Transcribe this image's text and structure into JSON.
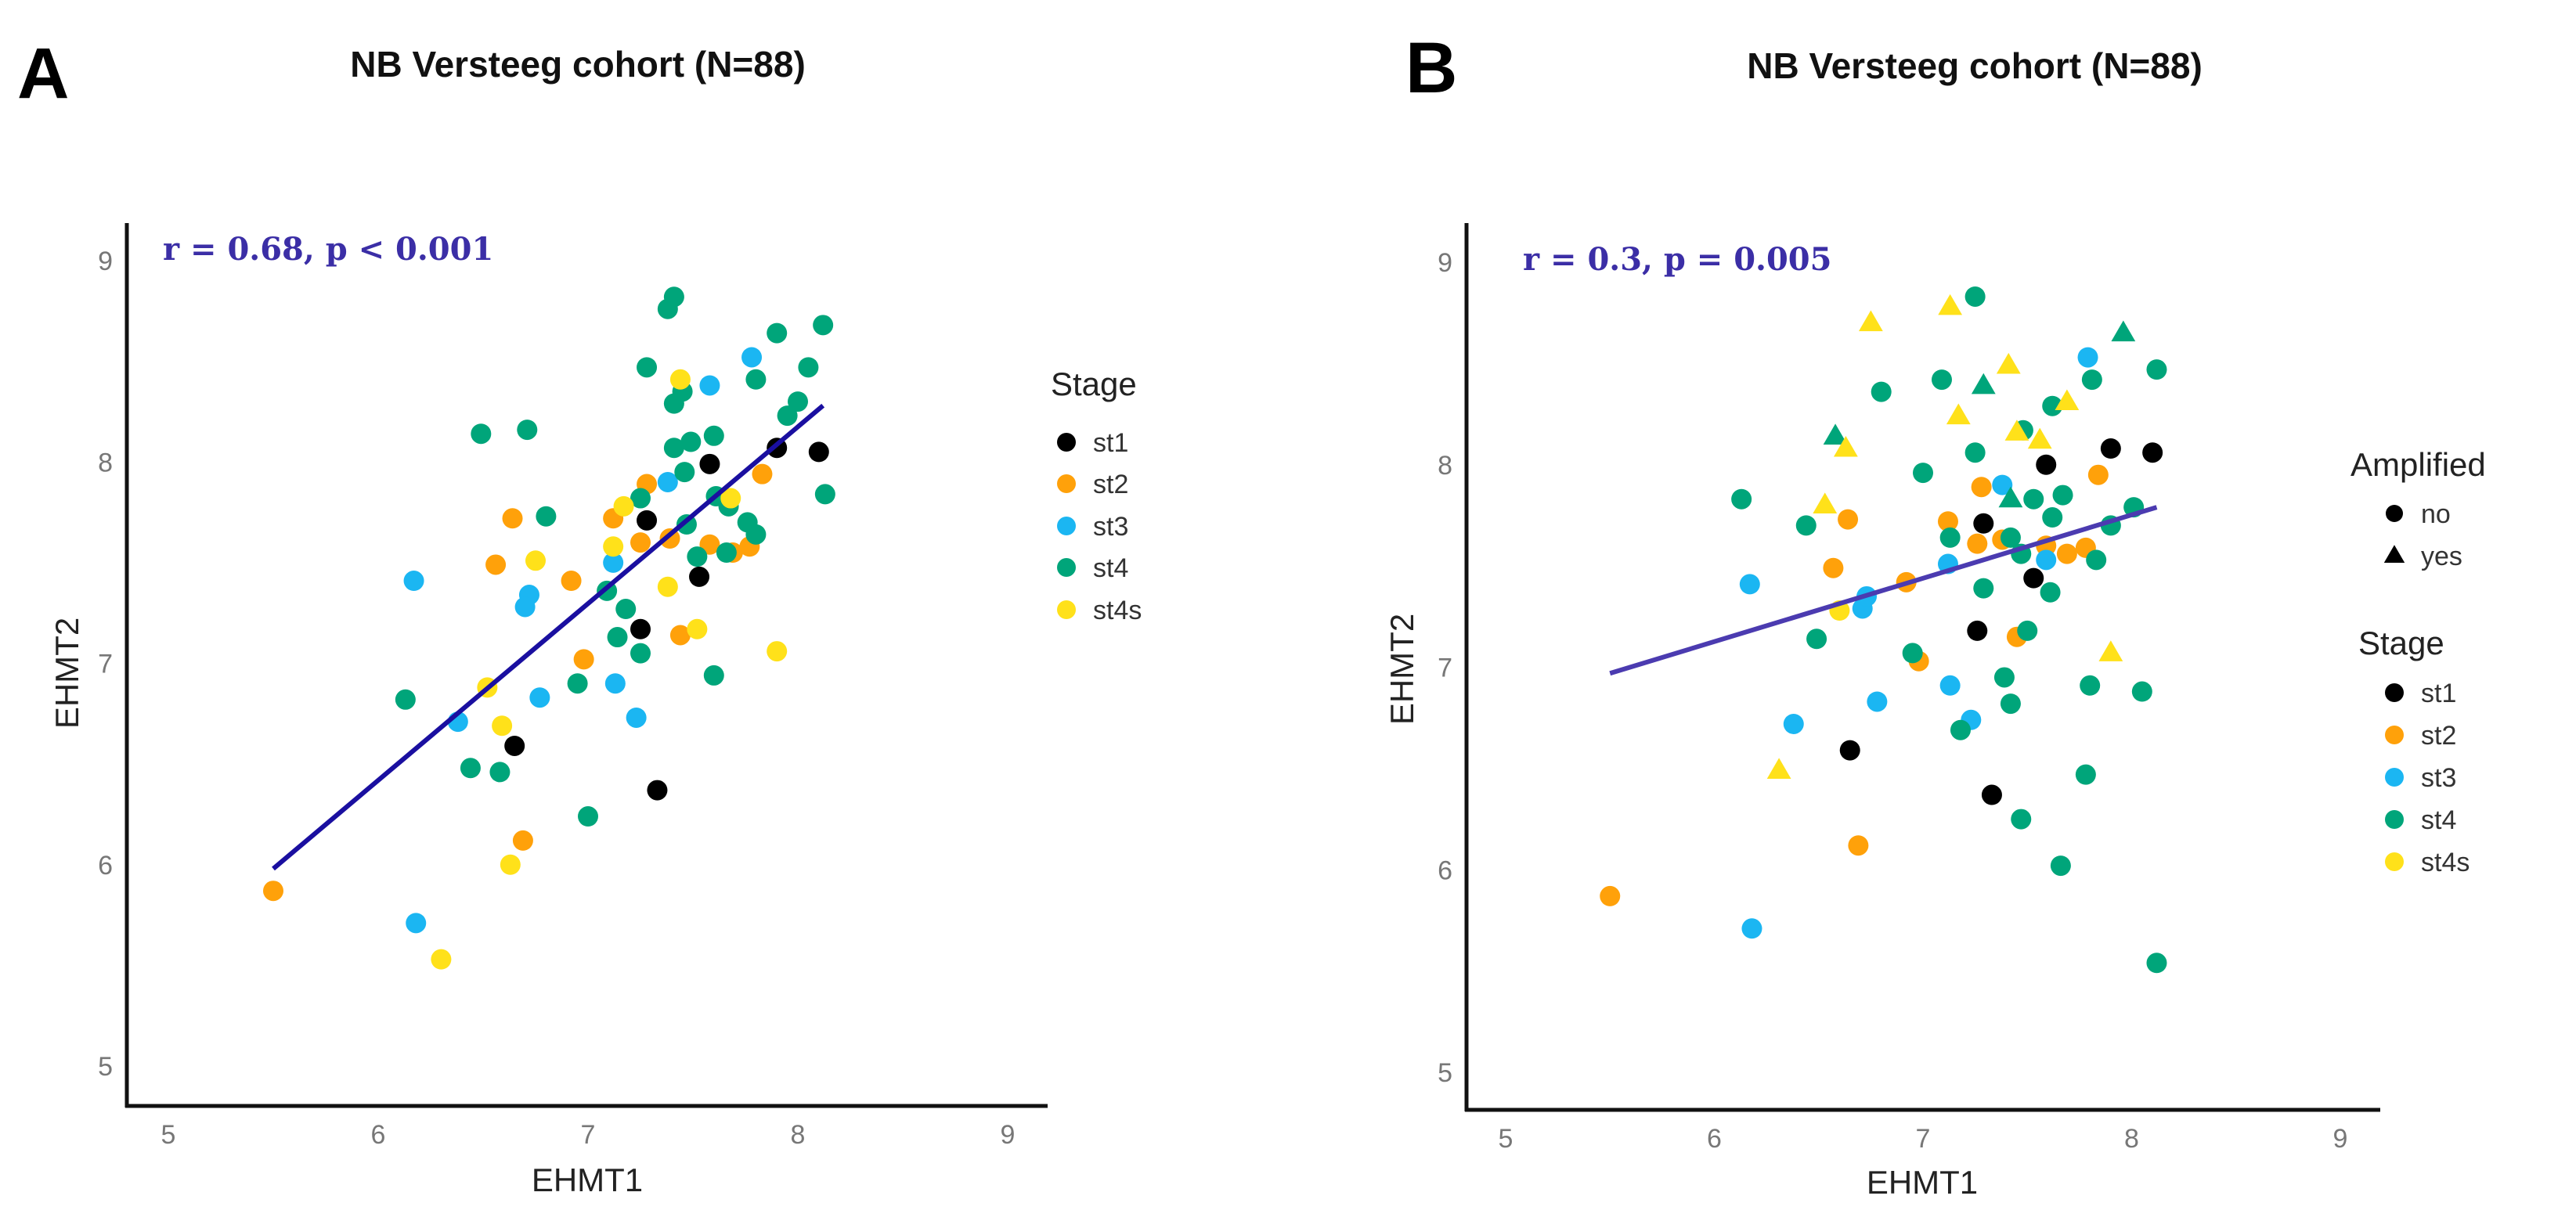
{
  "colors": {
    "st1": "#000000",
    "st2": "#FFA10A",
    "st3": "#1BB6F2",
    "st4": "#00A57A",
    "st4s": "#FFE11A",
    "line_A": "#1A0FA0",
    "line_B": "#4B3BB0"
  },
  "chart_data": [
    {
      "type": "scatter",
      "panel_label": "A",
      "title": "NB Versteeg cohort  (N=88)",
      "xlabel": "EHMT1",
      "ylabel": "EHMT2",
      "xlim": [
        4.8,
        9.2
      ],
      "ylim": [
        4.8,
        9.2
      ],
      "xticks": [
        "5",
        "6",
        "7",
        "8",
        "9"
      ],
      "yticks": [
        "5",
        "6",
        "7",
        "8",
        "9"
      ],
      "annotation": "r = 0.68, p < 0.001",
      "grid": false,
      "legend": {
        "title": "Stage",
        "entries": [
          "st1",
          "st2",
          "st3",
          "st4",
          "st4s"
        ],
        "placement": "right"
      },
      "fit_line": [
        [
          5.5,
          5.98
        ],
        [
          8.12,
          8.28
        ]
      ],
      "points": [
        [
          7.9,
          8.07,
          "st1"
        ],
        [
          8.1,
          8.05,
          "st1"
        ],
        [
          7.58,
          7.99,
          "st1"
        ],
        [
          7.28,
          7.71,
          "st1"
        ],
        [
          7.53,
          7.43,
          "st1"
        ],
        [
          7.25,
          7.17,
          "st1"
        ],
        [
          6.65,
          6.59,
          "st1"
        ],
        [
          7.33,
          6.37,
          "st1"
        ],
        [
          6.64,
          7.72,
          "st2"
        ],
        [
          6.56,
          7.49,
          "st2"
        ],
        [
          6.92,
          7.41,
          "st2"
        ],
        [
          7.12,
          7.72,
          "st2"
        ],
        [
          7.28,
          7.89,
          "st2"
        ],
        [
          7.25,
          7.6,
          "st2"
        ],
        [
          7.39,
          7.62,
          "st2"
        ],
        [
          7.58,
          7.59,
          "st2"
        ],
        [
          7.69,
          7.55,
          "st2"
        ],
        [
          7.77,
          7.58,
          "st2"
        ],
        [
          7.83,
          7.94,
          "st2"
        ],
        [
          6.98,
          7.02,
          "st2"
        ],
        [
          7.44,
          7.14,
          "st2"
        ],
        [
          6.69,
          6.12,
          "st2"
        ],
        [
          5.5,
          5.87,
          "st2"
        ],
        [
          6.17,
          7.41,
          "st3"
        ],
        [
          6.72,
          7.34,
          "st3"
        ],
        [
          6.7,
          7.28,
          "st3"
        ],
        [
          7.12,
          7.5,
          "st3"
        ],
        [
          7.38,
          7.9,
          "st3"
        ],
        [
          7.58,
          8.38,
          "st3"
        ],
        [
          7.78,
          8.52,
          "st3"
        ],
        [
          6.38,
          6.71,
          "st3"
        ],
        [
          6.77,
          6.83,
          "st3"
        ],
        [
          7.13,
          6.9,
          "st3"
        ],
        [
          7.23,
          6.73,
          "st3"
        ],
        [
          6.18,
          5.71,
          "st3"
        ],
        [
          7.41,
          8.82,
          "st4"
        ],
        [
          7.38,
          8.76,
          "st4"
        ],
        [
          7.28,
          8.47,
          "st4"
        ],
        [
          7.9,
          8.64,
          "st4"
        ],
        [
          8.12,
          8.68,
          "st4"
        ],
        [
          8.05,
          8.47,
          "st4"
        ],
        [
          7.8,
          8.41,
          "st4"
        ],
        [
          7.41,
          8.29,
          "st4"
        ],
        [
          7.45,
          8.35,
          "st4"
        ],
        [
          8.0,
          8.3,
          "st4"
        ],
        [
          7.95,
          8.23,
          "st4"
        ],
        [
          6.49,
          8.14,
          "st4"
        ],
        [
          6.71,
          8.16,
          "st4"
        ],
        [
          7.41,
          8.07,
          "st4"
        ],
        [
          7.49,
          8.1,
          "st4"
        ],
        [
          7.6,
          8.13,
          "st4"
        ],
        [
          7.46,
          7.95,
          "st4"
        ],
        [
          8.13,
          7.84,
          "st4"
        ],
        [
          7.25,
          7.82,
          "st4"
        ],
        [
          7.61,
          7.83,
          "st4"
        ],
        [
          7.67,
          7.78,
          "st4"
        ],
        [
          6.8,
          7.73,
          "st4"
        ],
        [
          7.47,
          7.69,
          "st4"
        ],
        [
          7.76,
          7.7,
          "st4"
        ],
        [
          7.8,
          7.64,
          "st4"
        ],
        [
          7.52,
          7.53,
          "st4"
        ],
        [
          7.66,
          7.55,
          "st4"
        ],
        [
          7.09,
          7.36,
          "st4"
        ],
        [
          7.18,
          7.27,
          "st4"
        ],
        [
          7.14,
          7.13,
          "st4"
        ],
        [
          7.25,
          7.05,
          "st4"
        ],
        [
          7.6,
          6.94,
          "st4"
        ],
        [
          6.95,
          6.9,
          "st4"
        ],
        [
          6.13,
          6.82,
          "st4"
        ],
        [
          6.44,
          6.48,
          "st4"
        ],
        [
          6.58,
          6.46,
          "st4"
        ],
        [
          7.0,
          6.24,
          "st4"
        ],
        [
          7.44,
          8.41,
          "st4s"
        ],
        [
          7.17,
          7.78,
          "st4s"
        ],
        [
          7.68,
          7.82,
          "st4s"
        ],
        [
          7.12,
          7.58,
          "st4s"
        ],
        [
          6.75,
          7.51,
          "st4s"
        ],
        [
          7.38,
          7.38,
          "st4s"
        ],
        [
          7.52,
          7.17,
          "st4s"
        ],
        [
          7.9,
          7.06,
          "st4s"
        ],
        [
          6.52,
          6.88,
          "st4s"
        ],
        [
          6.59,
          6.69,
          "st4s"
        ],
        [
          6.63,
          6.0,
          "st4s"
        ],
        [
          6.3,
          5.53,
          "st4s"
        ]
      ]
    },
    {
      "type": "scatter",
      "panel_label": "B",
      "title": "NB Versteeg cohort  (N=88)",
      "xlabel": "EHMT1",
      "ylabel": "EHMT2",
      "xlim": [
        4.8,
        9.2
      ],
      "ylim": [
        4.8,
        9.2
      ],
      "xticks": [
        "5",
        "6",
        "7",
        "8",
        "9"
      ],
      "yticks": [
        "5",
        "6",
        "7",
        "8",
        "9"
      ],
      "annotation": "r = 0.3, p = 0.005",
      "grid": false,
      "legend_shape": {
        "title": "Amplified",
        "entries": [
          "no",
          "yes"
        ]
      },
      "legend": {
        "title": "Stage",
        "entries": [
          "st1",
          "st2",
          "st3",
          "st4",
          "st4s"
        ],
        "placement": "right"
      },
      "fit_line": [
        [
          5.5,
          6.97
        ],
        [
          8.12,
          7.79
        ]
      ],
      "points": [
        [
          7.9,
          8.08,
          "st1",
          "no"
        ],
        [
          8.1,
          8.06,
          "st1",
          "no"
        ],
        [
          7.59,
          8.0,
          "st1",
          "no"
        ],
        [
          7.29,
          7.71,
          "st1",
          "no"
        ],
        [
          7.53,
          7.44,
          "st1",
          "no"
        ],
        [
          7.26,
          7.18,
          "st1",
          "no"
        ],
        [
          6.65,
          6.59,
          "st1",
          "no"
        ],
        [
          7.33,
          6.37,
          "st1",
          "no"
        ],
        [
          6.64,
          7.73,
          "st2",
          "no"
        ],
        [
          6.57,
          7.49,
          "st2",
          "no"
        ],
        [
          6.92,
          7.42,
          "st2",
          "no"
        ],
        [
          7.12,
          7.72,
          "st2",
          "no"
        ],
        [
          7.28,
          7.89,
          "st2",
          "no"
        ],
        [
          7.26,
          7.61,
          "st2",
          "no"
        ],
        [
          7.38,
          7.63,
          "st2",
          "no"
        ],
        [
          7.59,
          7.6,
          "st2",
          "no"
        ],
        [
          7.69,
          7.56,
          "st2",
          "no"
        ],
        [
          7.78,
          7.59,
          "st2",
          "no"
        ],
        [
          7.84,
          7.95,
          "st2",
          "no"
        ],
        [
          6.98,
          7.03,
          "st2",
          "no"
        ],
        [
          7.45,
          7.15,
          "st2",
          "no"
        ],
        [
          6.69,
          6.12,
          "st2",
          "no"
        ],
        [
          5.5,
          5.87,
          "st2",
          "no"
        ],
        [
          6.17,
          7.41,
          "st3",
          "no"
        ],
        [
          6.71,
          7.29,
          "st3",
          "no"
        ],
        [
          6.73,
          7.35,
          "st3",
          "no"
        ],
        [
          7.12,
          7.51,
          "st3",
          "no"
        ],
        [
          7.38,
          7.9,
          "st3",
          "no"
        ],
        [
          7.59,
          7.53,
          "st3",
          "no"
        ],
        [
          7.79,
          8.53,
          "st3",
          "no"
        ],
        [
          6.38,
          6.72,
          "st3",
          "no"
        ],
        [
          6.78,
          6.83,
          "st3",
          "no"
        ],
        [
          7.13,
          6.91,
          "st3",
          "no"
        ],
        [
          7.23,
          6.74,
          "st3",
          "no"
        ],
        [
          6.18,
          5.71,
          "st3",
          "no"
        ],
        [
          7.25,
          8.83,
          "st4",
          "no"
        ],
        [
          8.12,
          8.47,
          "st4",
          "no"
        ],
        [
          7.81,
          8.42,
          "st4",
          "no"
        ],
        [
          7.09,
          8.42,
          "st4",
          "no"
        ],
        [
          6.8,
          8.36,
          "st4",
          "no"
        ],
        [
          7.62,
          8.29,
          "st4",
          "no"
        ],
        [
          7.48,
          8.17,
          "st4",
          "no"
        ],
        [
          7.25,
          8.06,
          "st4",
          "no"
        ],
        [
          7.0,
          7.96,
          "st4",
          "no"
        ],
        [
          6.13,
          7.83,
          "st4",
          "no"
        ],
        [
          7.53,
          7.83,
          "st4",
          "no"
        ],
        [
          7.67,
          7.85,
          "st4",
          "no"
        ],
        [
          8.01,
          7.79,
          "st4",
          "no"
        ],
        [
          6.44,
          7.7,
          "st4",
          "no"
        ],
        [
          7.62,
          7.74,
          "st4",
          "no"
        ],
        [
          7.9,
          7.7,
          "st4",
          "no"
        ],
        [
          7.13,
          7.64,
          "st4",
          "no"
        ],
        [
          7.42,
          7.64,
          "st4",
          "no"
        ],
        [
          7.47,
          7.56,
          "st4",
          "no"
        ],
        [
          7.83,
          7.53,
          "st4",
          "no"
        ],
        [
          7.29,
          7.39,
          "st4",
          "no"
        ],
        [
          7.61,
          7.37,
          "st4",
          "no"
        ],
        [
          6.49,
          7.14,
          "st4",
          "no"
        ],
        [
          7.5,
          7.18,
          "st4",
          "no"
        ],
        [
          6.95,
          7.07,
          "st4",
          "no"
        ],
        [
          7.39,
          6.95,
          "st4",
          "no"
        ],
        [
          7.8,
          6.91,
          "st4",
          "no"
        ],
        [
          8.05,
          6.88,
          "st4",
          "no"
        ],
        [
          7.42,
          6.82,
          "st4",
          "no"
        ],
        [
          7.18,
          6.69,
          "st4",
          "no"
        ],
        [
          7.78,
          6.47,
          "st4",
          "no"
        ],
        [
          7.47,
          6.25,
          "st4",
          "no"
        ],
        [
          7.66,
          6.02,
          "st4",
          "no"
        ],
        [
          8.12,
          5.54,
          "st4",
          "no"
        ],
        [
          6.58,
          8.14,
          "st4",
          "yes"
        ],
        [
          7.29,
          8.39,
          "st4",
          "yes"
        ],
        [
          7.96,
          8.65,
          "st4",
          "yes"
        ],
        [
          7.42,
          7.83,
          "st4",
          "yes"
        ],
        [
          6.75,
          8.7,
          "st4s",
          "yes"
        ],
        [
          7.13,
          8.78,
          "st4s",
          "yes"
        ],
        [
          7.41,
          8.49,
          "st4s",
          "yes"
        ],
        [
          7.17,
          8.24,
          "st4s",
          "yes"
        ],
        [
          7.69,
          8.31,
          "st4s",
          "yes"
        ],
        [
          7.45,
          8.16,
          "st4s",
          "yes"
        ],
        [
          7.56,
          8.12,
          "st4s",
          "yes"
        ],
        [
          6.63,
          8.08,
          "st4s",
          "yes"
        ],
        [
          6.53,
          7.8,
          "st4s",
          "yes"
        ],
        [
          7.9,
          7.07,
          "st4s",
          "yes"
        ],
        [
          6.31,
          6.49,
          "st4s",
          "yes"
        ],
        [
          6.6,
          7.28,
          "st4s",
          "no"
        ]
      ]
    }
  ]
}
